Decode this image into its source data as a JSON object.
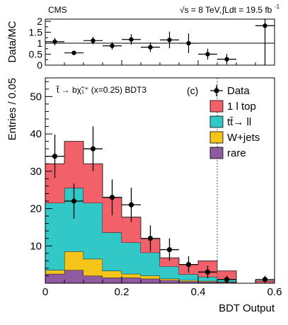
{
  "header": {
    "experiment": "CMS",
    "energy": "√s = 8 TeV,",
    "lumi": "∫Ldt = 19.5 fb",
    "lumi_exp": "-1"
  },
  "chart_data": [
    {
      "type": "scatter",
      "panel": "ratio",
      "ylabel": "Data/MC",
      "xlim": [
        0,
        0.6
      ],
      "ylim": [
        0,
        2.1
      ],
      "yticks": [
        0,
        0.5,
        1,
        1.5,
        2
      ],
      "ytick_labels": [
        "0",
        "0.5",
        "1",
        "1.5",
        "2"
      ],
      "reference_line": 1,
      "bin_edges": [
        0,
        0.05,
        0.1,
        0.15,
        0.2,
        0.25,
        0.3,
        0.35,
        0.4,
        0.45,
        0.5,
        0.55,
        0.6
      ],
      "points": [
        {
          "x": 0.025,
          "y": 1.07,
          "err": 0.17
        },
        {
          "x": 0.075,
          "y": 0.56,
          "err": 0.09
        },
        {
          "x": 0.125,
          "y": 1.12,
          "err": 0.17
        },
        {
          "x": 0.175,
          "y": 0.88,
          "err": 0.17
        },
        {
          "x": 0.225,
          "y": 1.17,
          "err": 0.24
        },
        {
          "x": 0.275,
          "y": 0.82,
          "err": 0.22
        },
        {
          "x": 0.325,
          "y": 1.15,
          "err": 0.38
        },
        {
          "x": 0.375,
          "y": 1.0,
          "err": 0.45
        },
        {
          "x": 0.425,
          "y": 0.5,
          "err": 0.25
        },
        {
          "x": 0.475,
          "y": 0.27,
          "err": 0.24
        },
        {
          "x": 0.575,
          "y": 1.8,
          "err": 1.8
        }
      ]
    },
    {
      "type": "bar",
      "panel": "main",
      "stacked": true,
      "label": "(c)",
      "annotation": "t̃ → bχ̃₁⁺ (x=0.25) BDT3",
      "xlabel": "BDT Output",
      "ylabel": "Entries / 0.05",
      "xlim": [
        0,
        0.6
      ],
      "ylim": [
        0,
        55
      ],
      "xticks": [
        0,
        0.2,
        0.4,
        0.6
      ],
      "xtick_labels": [
        "0",
        "0.2",
        "0.4",
        "0.6"
      ],
      "yticks": [
        10,
        20,
        30,
        40,
        50
      ],
      "ytick_labels": [
        "10",
        "20",
        "30",
        "40",
        "50"
      ],
      "cut_line_x": 0.45,
      "bin_edges": [
        0,
        0.05,
        0.1,
        0.15,
        0.2,
        0.25,
        0.3,
        0.35,
        0.4,
        0.45,
        0.5,
        0.55,
        0.6
      ],
      "legend_position": "top-right",
      "series": [
        {
          "name": "rare",
          "color": "#8f5aa0",
          "values": [
            2.5,
            3.5,
            2.0,
            1.5,
            1.5,
            1.2,
            0.8,
            0.5,
            0.4,
            0.3,
            0.0,
            0.0
          ]
        },
        {
          "name": "W+jets",
          "color": "#f5c51b",
          "values": [
            1.0,
            5.0,
            4.5,
            1.8,
            1.0,
            0.8,
            0.4,
            0.3,
            0.2,
            0.1,
            0.0,
            0.0
          ]
        },
        {
          "name": "tt̄→ ll",
          "color": "#33c8c8",
          "values": [
            18.0,
            17.0,
            15.0,
            10.3,
            8.4,
            6.2,
            3.3,
            1.6,
            1.1,
            0.6,
            0.0,
            0.0
          ]
        },
        {
          "name": "1 l top",
          "color": "#f2606a",
          "values": [
            10.5,
            12.5,
            10.5,
            9.4,
            6.8,
            3.8,
            2.3,
            2.6,
            4.3,
            2.3,
            0.0,
            0.6
          ]
        }
      ],
      "data": {
        "name": "Data",
        "points": [
          {
            "x": 0.025,
            "y": 34,
            "err": 5.8
          },
          {
            "x": 0.075,
            "y": 22,
            "err": 4.7
          },
          {
            "x": 0.125,
            "y": 36,
            "err": 6.0
          },
          {
            "x": 0.175,
            "y": 23,
            "err": 4.8
          },
          {
            "x": 0.225,
            "y": 21,
            "err": 4.6
          },
          {
            "x": 0.275,
            "y": 12,
            "err": 3.5
          },
          {
            "x": 0.325,
            "y": 9,
            "err": 3.0
          },
          {
            "x": 0.375,
            "y": 5,
            "err": 2.2
          },
          {
            "x": 0.425,
            "y": 3,
            "err": 1.7
          },
          {
            "x": 0.475,
            "y": 1,
            "err": 1.0
          },
          {
            "x": 0.575,
            "y": 1,
            "err": 1.0
          }
        ]
      },
      "legend": [
        {
          "label": "Data",
          "kind": "marker"
        },
        {
          "label": "1 l top",
          "kind": "fill",
          "color": "#f2606a"
        },
        {
          "label": "tt̄→ ll",
          "kind": "fill",
          "color": "#33c8c8"
        },
        {
          "label": "W+jets",
          "kind": "fill",
          "color": "#f5c51b"
        },
        {
          "label": "rare",
          "kind": "fill",
          "color": "#8f5aa0"
        }
      ]
    }
  ]
}
